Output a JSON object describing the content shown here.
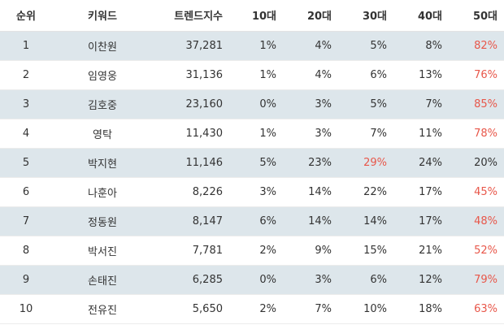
{
  "headers": {
    "rank": "순위",
    "keyword": "키워드",
    "score": "트렌드지수",
    "age10": "10대",
    "age20": "20대",
    "age30": "30대",
    "age40": "40대",
    "age50": "50대"
  },
  "colors": {
    "highlight": "#e8574a",
    "row_shade": "#dde6eb",
    "text": "#333333"
  },
  "rows": [
    {
      "rank": "1",
      "keyword": "이찬원",
      "score": "37,281",
      "age10": "1%",
      "age20": "4%",
      "age30": "5%",
      "age40": "8%",
      "age50": "82%",
      "highlight": "age50"
    },
    {
      "rank": "2",
      "keyword": "임영웅",
      "score": "31,136",
      "age10": "1%",
      "age20": "4%",
      "age30": "6%",
      "age40": "13%",
      "age50": "76%",
      "highlight": "age50"
    },
    {
      "rank": "3",
      "keyword": "김호중",
      "score": "23,160",
      "age10": "0%",
      "age20": "3%",
      "age30": "5%",
      "age40": "7%",
      "age50": "85%",
      "highlight": "age50"
    },
    {
      "rank": "4",
      "keyword": "영탁",
      "score": "11,430",
      "age10": "1%",
      "age20": "3%",
      "age30": "7%",
      "age40": "11%",
      "age50": "78%",
      "highlight": "age50"
    },
    {
      "rank": "5",
      "keyword": "박지현",
      "score": "11,146",
      "age10": "5%",
      "age20": "23%",
      "age30": "29%",
      "age40": "24%",
      "age50": "20%",
      "highlight": "age30"
    },
    {
      "rank": "6",
      "keyword": "나훈아",
      "score": "8,226",
      "age10": "3%",
      "age20": "14%",
      "age30": "22%",
      "age40": "17%",
      "age50": "45%",
      "highlight": "age50"
    },
    {
      "rank": "7",
      "keyword": "정동원",
      "score": "8,147",
      "age10": "6%",
      "age20": "14%",
      "age30": "14%",
      "age40": "17%",
      "age50": "48%",
      "highlight": "age50"
    },
    {
      "rank": "8",
      "keyword": "박서진",
      "score": "7,781",
      "age10": "2%",
      "age20": "9%",
      "age30": "15%",
      "age40": "21%",
      "age50": "52%",
      "highlight": "age50"
    },
    {
      "rank": "9",
      "keyword": "손태진",
      "score": "6,285",
      "age10": "0%",
      "age20": "3%",
      "age30": "6%",
      "age40": "12%",
      "age50": "79%",
      "highlight": "age50"
    },
    {
      "rank": "10",
      "keyword": "전유진",
      "score": "5,650",
      "age10": "2%",
      "age20": "7%",
      "age30": "10%",
      "age40": "18%",
      "age50": "63%",
      "highlight": "age50"
    }
  ]
}
